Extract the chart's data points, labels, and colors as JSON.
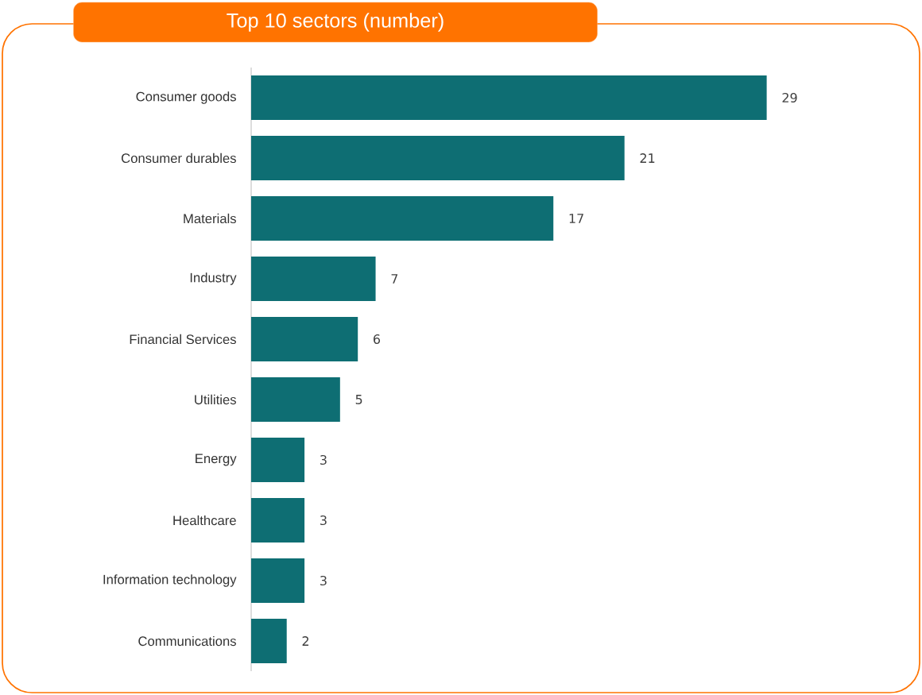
{
  "chart_data": {
    "type": "bar",
    "orientation": "horizontal",
    "title": "Top 10 sectors (number)",
    "categories": [
      "Consumer goods",
      "Consumer durables",
      "Materials",
      "Industry",
      "Financial Services",
      "Utilities",
      "Energy",
      "Healthcare",
      "Information technology",
      "Communications"
    ],
    "values": [
      29,
      21,
      17,
      7,
      6,
      5,
      3,
      3,
      3,
      2
    ],
    "color": "#0e6e73",
    "data_labels": true
  }
}
